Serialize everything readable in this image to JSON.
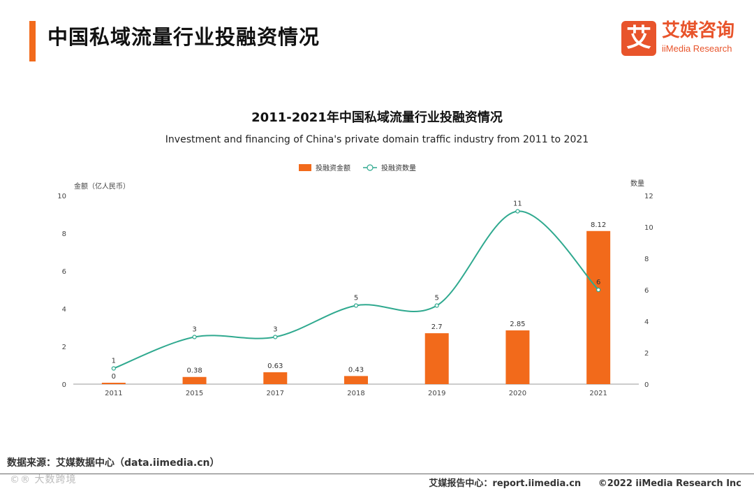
{
  "page": {
    "title": "中国私域流量行业投融资情况",
    "source": "数据来源：艾媒数据中心（data.iimedia.cn）",
    "watermark": "©® 大数跨境",
    "footer_report": "艾媒报告中心：report.iimedia.cn",
    "footer_copyright": "©2022  iiMedia Research  Inc"
  },
  "logo": {
    "mark": "艾",
    "cn": "艾媒咨询",
    "en": "iiMedia Research"
  },
  "colors": {
    "accent": "#f26a1b",
    "bar": "#f26a1b",
    "line": "#2fa98f",
    "logo": "#e8542b"
  },
  "chart_data": {
    "type": "bar",
    "title": "2011-2021年中国私域流量行业投融资情况",
    "subtitle": "Investment and financing of China's private domain traffic industry from 2011 to 2021",
    "categories": [
      "2011",
      "2015",
      "2017",
      "2018",
      "2019",
      "2020",
      "2021"
    ],
    "series": [
      {
        "name": "投融资金额",
        "type": "bar",
        "axis": "left",
        "values": [
          0,
          0.38,
          0.63,
          0.43,
          2.7,
          2.85,
          8.12
        ],
        "labels": [
          "0",
          "0.38",
          "0.63",
          "0.43",
          "2.7",
          "2.85",
          "8.12"
        ]
      },
      {
        "name": "投融资数量",
        "type": "line",
        "axis": "right",
        "values": [
          1,
          3,
          3,
          5,
          5,
          11,
          6
        ],
        "labels": [
          "1",
          "3",
          "3",
          "5",
          "5",
          "11",
          "6"
        ]
      }
    ],
    "yleft": {
      "label": "金额（亿人民币）",
      "range": [
        0,
        10
      ],
      "ticks": [
        "0",
        "2",
        "4",
        "6",
        "8",
        "10"
      ]
    },
    "yright": {
      "label": "数量",
      "range": [
        0,
        12
      ],
      "ticks": [
        "0",
        "2",
        "4",
        "6",
        "8",
        "10",
        "12"
      ]
    },
    "legend_position": "top-center",
    "grid": false
  }
}
